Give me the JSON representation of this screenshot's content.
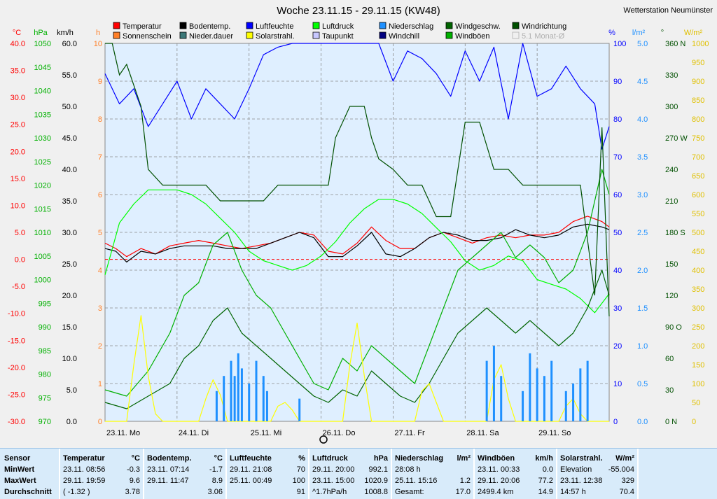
{
  "station": "Wetterstation Neumünster",
  "chart_data": {
    "type": "line",
    "title": "Woche 23.11.15 - 29.11.15 (KW48)",
    "x_labels": [
      "23.11. Mo",
      "24.11. Di",
      "25.11. Mi",
      "26.11. Do",
      "27.11. Fr",
      "28.11. Sa",
      "29.11. So"
    ],
    "x_range": [
      0,
      7
    ],
    "legend": [
      {
        "name": "Temperatur",
        "color": "#ff0000"
      },
      {
        "name": "Bodentemp.",
        "color": "#000000"
      },
      {
        "name": "Luftfeuchte",
        "color": "#0000ff"
      },
      {
        "name": "Luftdruck",
        "color": "#00ff00"
      },
      {
        "name": "Niederschlag",
        "color": "#1e90ff"
      },
      {
        "name": "Windgeschw.",
        "color": "#006400"
      },
      {
        "name": "Windrichtung",
        "color": "#005000"
      },
      {
        "name": "Sonnenschein",
        "color": "#ff7f27"
      },
      {
        "name": "Nieder.dauer",
        "color": "#3c7878"
      },
      {
        "name": "Solarstrahl.",
        "color": "#ffff00"
      },
      {
        "name": "Taupunkt",
        "color": "#c8c8ff"
      },
      {
        "name": "Windchill",
        "color": "#000080"
      },
      {
        "name": "Windböen",
        "color": "#00b000"
      },
      {
        "name": "5.1 Monat-Ø",
        "color": "#c0c0c0"
      }
    ],
    "axes": {
      "temp": {
        "unit": "°C",
        "min": -30,
        "max": 40,
        "ticks": [
          "40.0",
          "35.0",
          "30.0",
          "25.0",
          "20.0",
          "15.0",
          "10.0",
          "5.0",
          "0.0",
          "-5.0",
          "-10.0",
          "-15.0",
          "-20.0",
          "-25.0",
          "-30.0"
        ],
        "color": "#ff0000"
      },
      "press": {
        "unit": "hPa",
        "min": 970,
        "max": 1050,
        "ticks": [
          "1050",
          "1045",
          "1040",
          "1035",
          "1030",
          "1025",
          "1020",
          "1015",
          "1010",
          "1005",
          "1000",
          "995",
          "990",
          "985",
          "980",
          "975",
          "970"
        ],
        "color": "#00b000"
      },
      "wind": {
        "unit": "km/h",
        "min": 0,
        "max": 60,
        "ticks": [
          "60.0",
          "55.0",
          "50.0",
          "45.0",
          "40.0",
          "35.0",
          "30.0",
          "25.0",
          "20.0",
          "15.0",
          "10.0",
          "5.0",
          "0.0"
        ],
        "color": "#000000"
      },
      "sun": {
        "unit": "h",
        "min": 0,
        "max": 10,
        "ticks": [
          "10",
          "9",
          "8",
          "7",
          "6",
          "5",
          "4",
          "3",
          "2",
          "1",
          "0"
        ],
        "color": "#ff7f27"
      },
      "hum": {
        "unit": "%",
        "min": 0,
        "max": 100,
        "ticks": [
          "100",
          "90",
          "80",
          "70",
          "60",
          "50",
          "40",
          "30",
          "20",
          "10",
          "0"
        ],
        "color": "#0000ff"
      },
      "rain": {
        "unit": "l/m²",
        "min": 0,
        "max": 5,
        "ticks": [
          "5.0",
          "4.5",
          "4.0",
          "3.5",
          "3.0",
          "2.5",
          "2.0",
          "1.5",
          "1.0",
          "0.5",
          "0.0"
        ],
        "color": "#1e90ff"
      },
      "dir": {
        "unit": "°",
        "min": 0,
        "max": 360,
        "ticks": [
          "360 N",
          "330",
          "300",
          "270 W",
          "240",
          "210",
          "180 S",
          "150",
          "120",
          "90 O",
          "60",
          "30",
          "0 N"
        ],
        "color": "#005000"
      },
      "solar": {
        "unit": "W/m²",
        "min": 0,
        "max": 1000,
        "ticks": [
          "1000",
          "950",
          "900",
          "850",
          "800",
          "750",
          "700",
          "650",
          "600",
          "550",
          "500",
          "450",
          "400",
          "350",
          "300",
          "250",
          "200",
          "150",
          "100",
          "50",
          "0"
        ],
        "color": "#e0c000"
      }
    },
    "series": [
      {
        "name": "Temperatur",
        "axis": "temp",
        "x": [
          0,
          0.15,
          0.3,
          0.5,
          0.7,
          0.9,
          1.1,
          1.3,
          1.5,
          1.7,
          1.9,
          2.1,
          2.3,
          2.5,
          2.7,
          2.9,
          3.1,
          3.3,
          3.5,
          3.7,
          3.9,
          4.1,
          4.3,
          4.5,
          4.7,
          4.9,
          5.1,
          5.3,
          5.5,
          5.7,
          5.9,
          6.1,
          6.3,
          6.5,
          6.7,
          6.9,
          7.0
        ],
        "y": [
          3,
          2,
          0.5,
          2,
          1,
          2.5,
          3,
          3.5,
          3,
          2.5,
          2,
          2.5,
          3,
          4,
          5,
          4.5,
          1.5,
          1,
          3,
          6,
          3.5,
          2,
          2,
          4,
          5,
          4,
          3,
          4,
          4.5,
          4,
          4.5,
          4.5,
          5,
          7,
          8,
          7,
          6
        ]
      },
      {
        "name": "Bodentemp.",
        "axis": "temp",
        "x": [
          0,
          0.15,
          0.3,
          0.5,
          0.7,
          0.9,
          1.1,
          1.3,
          1.5,
          1.7,
          1.9,
          2.1,
          2.3,
          2.5,
          2.7,
          2.9,
          3.1,
          3.3,
          3.5,
          3.7,
          3.9,
          4.1,
          4.3,
          4.5,
          4.7,
          4.9,
          5.1,
          5.3,
          5.5,
          5.7,
          5.9,
          6.1,
          6.3,
          6.5,
          6.7,
          6.9,
          7.0
        ],
        "y": [
          2,
          1.5,
          -0.5,
          1.5,
          1,
          2,
          2.5,
          2.5,
          2.5,
          2,
          2,
          2,
          3,
          4,
          5,
          4,
          0.5,
          0.5,
          2.5,
          5,
          1,
          0.5,
          2,
          4,
          5,
          4.5,
          3.5,
          3.5,
          4,
          5.5,
          4.5,
          4,
          4.5,
          6,
          6.5,
          6,
          5.5
        ]
      },
      {
        "name": "Luftfeuchte",
        "axis": "hum",
        "x": [
          0,
          0.2,
          0.4,
          0.6,
          0.8,
          1.0,
          1.2,
          1.4,
          1.6,
          1.8,
          2.0,
          2.2,
          2.4,
          2.6,
          2.8,
          3.0,
          3.2,
          3.4,
          3.6,
          3.8,
          4.0,
          4.2,
          4.4,
          4.6,
          4.8,
          5.0,
          5.2,
          5.4,
          5.6,
          5.8,
          6.0,
          6.2,
          6.4,
          6.6,
          6.8,
          6.9,
          7.0
        ],
        "y": [
          92,
          84,
          88,
          78,
          84,
          90,
          80,
          88,
          84,
          80,
          88,
          97,
          99,
          100,
          100,
          100,
          100,
          100,
          100,
          100,
          90,
          98,
          96,
          92,
          86,
          98,
          90,
          99,
          80,
          100,
          86,
          88,
          94,
          88,
          84,
          72,
          78
        ]
      },
      {
        "name": "Luftdruck",
        "axis": "press",
        "x": [
          0,
          0.2,
          0.4,
          0.6,
          0.8,
          1.0,
          1.2,
          1.4,
          1.6,
          1.8,
          2.0,
          2.2,
          2.4,
          2.6,
          2.8,
          3.0,
          3.2,
          3.4,
          3.6,
          3.8,
          4.0,
          4.2,
          4.4,
          4.6,
          4.8,
          5.0,
          5.2,
          5.4,
          5.6,
          5.8,
          6.0,
          6.2,
          6.4,
          6.6,
          6.8,
          7.0
        ],
        "y": [
          1001,
          1012,
          1016,
          1019,
          1019,
          1019,
          1018,
          1016,
          1013,
          1010,
          1006,
          1004,
          1003,
          1002,
          1003,
          1005,
          1008,
          1012,
          1015,
          1017,
          1017,
          1016,
          1014,
          1011,
          1008,
          1004,
          1002,
          1003,
          1005,
          1004,
          1000,
          999,
          998,
          996,
          993,
          997
        ]
      },
      {
        "name": "Windgeschw.",
        "axis": "wind",
        "x": [
          0,
          0.3,
          0.6,
          0.9,
          1.1,
          1.3,
          1.5,
          1.7,
          1.9,
          2.1,
          2.3,
          2.5,
          2.7,
          2.9,
          3.1,
          3.3,
          3.5,
          3.7,
          3.9,
          4.1,
          4.3,
          4.5,
          4.7,
          4.9,
          5.1,
          5.3,
          5.5,
          5.7,
          5.9,
          6.1,
          6.3,
          6.5,
          6.7,
          6.9,
          7.0
        ],
        "y": [
          3,
          2,
          4,
          6,
          10,
          12,
          16,
          18,
          14,
          12,
          10,
          8,
          6,
          4,
          3,
          5,
          4,
          8,
          6,
          4,
          3,
          6,
          10,
          14,
          16,
          18,
          16,
          14,
          16,
          14,
          12,
          14,
          18,
          24,
          20
        ]
      },
      {
        "name": "Windböen",
        "axis": "wind",
        "x": [
          0,
          0.3,
          0.6,
          0.9,
          1.1,
          1.3,
          1.5,
          1.7,
          1.9,
          2.1,
          2.3,
          2.5,
          2.7,
          2.9,
          3.1,
          3.3,
          3.5,
          3.7,
          3.9,
          4.1,
          4.3,
          4.5,
          4.7,
          4.9,
          5.1,
          5.3,
          5.5,
          5.7,
          5.9,
          6.1,
          6.3,
          6.5,
          6.7,
          6.9,
          7.0
        ],
        "y": [
          5,
          4,
          8,
          14,
          20,
          22,
          28,
          30,
          24,
          20,
          18,
          14,
          10,
          6,
          5,
          10,
          8,
          12,
          10,
          8,
          6,
          12,
          18,
          24,
          26,
          28,
          30,
          26,
          28,
          26,
          22,
          24,
          30,
          40,
          36
        ]
      },
      {
        "name": "Windrichtung",
        "axis": "dir",
        "x": [
          0,
          0.1,
          0.2,
          0.3,
          0.5,
          0.6,
          0.8,
          1.0,
          1.2,
          1.4,
          1.6,
          1.8,
          2.0,
          2.2,
          2.4,
          2.6,
          2.8,
          3.0,
          3.1,
          3.2,
          3.4,
          3.6,
          3.7,
          3.8,
          4.0,
          4.2,
          4.4,
          4.6,
          4.8,
          5.0,
          5.2,
          5.4,
          5.6,
          5.8,
          6.0,
          6.2,
          6.4,
          6.6,
          6.8,
          6.9,
          7.0
        ],
        "y": [
          360,
          360,
          330,
          340,
          300,
          240,
          225,
          225,
          225,
          225,
          210,
          210,
          210,
          210,
          225,
          225,
          225,
          225,
          225,
          270,
          300,
          300,
          270,
          250,
          240,
          225,
          225,
          195,
          195,
          285,
          285,
          240,
          240,
          225,
          225,
          225,
          225,
          225,
          120,
          280,
          100
        ]
      },
      {
        "name": "Solarstrahl.",
        "axis": "solar",
        "x": [
          0,
          0.3,
          0.4,
          0.5,
          0.6,
          0.7,
          0.8,
          1.0,
          1.3,
          1.4,
          1.5,
          1.6,
          1.7,
          2.0,
          2.3,
          2.4,
          2.5,
          2.6,
          2.7,
          3.0,
          3.3,
          3.4,
          3.5,
          3.6,
          3.7,
          4.0,
          4.3,
          4.4,
          4.5,
          4.6,
          4.7,
          5.0,
          5.3,
          5.4,
          5.5,
          5.6,
          5.7,
          6.0,
          6.3,
          6.4,
          6.5,
          6.6,
          6.7,
          7.0
        ],
        "y": [
          0,
          0,
          150,
          280,
          120,
          20,
          0,
          0,
          0,
          60,
          110,
          70,
          0,
          0,
          0,
          40,
          50,
          30,
          0,
          0,
          0,
          150,
          260,
          120,
          0,
          0,
          0,
          80,
          100,
          50,
          0,
          0,
          0,
          110,
          150,
          60,
          0,
          0,
          0,
          40,
          60,
          20,
          0,
          0
        ]
      },
      {
        "name": "Niederschlag",
        "axis": "rain",
        "type": "bar",
        "x": [
          1.55,
          1.65,
          1.75,
          1.8,
          1.85,
          1.9,
          2.0,
          2.1,
          2.2,
          2.25,
          2.7,
          5.3,
          5.4,
          5.5,
          5.8,
          5.9,
          6.0,
          6.1,
          6.2,
          6.4,
          6.5,
          6.6,
          6.7
        ],
        "y": [
          0.4,
          0.6,
          0.8,
          0.6,
          0.9,
          0.7,
          0.5,
          0.8,
          0.6,
          0.4,
          0.3,
          0.8,
          1.0,
          0.6,
          0.4,
          0.9,
          0.7,
          0.6,
          0.8,
          0.4,
          0.5,
          0.7,
          0.8
        ]
      }
    ]
  },
  "stats": [
    {
      "name": "Sensor",
      "unit": "",
      "rows": [
        {
          "a": "MinWert",
          "b": ""
        },
        {
          "a": "MaxWert",
          "b": ""
        },
        {
          "a": "Durchschnitt",
          "b": ""
        }
      ]
    },
    {
      "name": "Temperatur",
      "unit": "°C",
      "rows": [
        {
          "a": "23.11.  08:56",
          "b": "-0.3"
        },
        {
          "a": "29.11.  19:59",
          "b": "9.6"
        },
        {
          "a": "( -1.32 )",
          "b": "3.78"
        }
      ]
    },
    {
      "name": "Bodentemp.",
      "unit": "°C",
      "rows": [
        {
          "a": "23.11.  07:14",
          "b": "-1.7"
        },
        {
          "a": "29.11.  11:47",
          "b": "8.9"
        },
        {
          "a": "",
          "b": "3.06"
        }
      ]
    },
    {
      "name": "Luftfeuchte",
      "unit": "%",
      "rows": [
        {
          "a": "29.11.  21:08",
          "b": "70"
        },
        {
          "a": "25.11.  00:49",
          "b": "100"
        },
        {
          "a": "",
          "b": "91"
        }
      ]
    },
    {
      "name": "Luftdruck",
      "unit": "hPa",
      "rows": [
        {
          "a": "29.11.  20:00",
          "b": "992.1"
        },
        {
          "a": "23.11.  15:00",
          "b": "1020.9"
        },
        {
          "a": "^1.7hPa/h",
          "b": "1008.8"
        }
      ]
    },
    {
      "name": "Niederschlag",
      "unit": "l/m²",
      "rows": [
        {
          "a": "28:08 h",
          "b": ""
        },
        {
          "a": "25.11.  15:16",
          "b": "1.2"
        },
        {
          "a": "Gesamt:",
          "b": "17.0"
        }
      ]
    },
    {
      "name": "Windböen",
      "unit": "km/h",
      "rows": [
        {
          "a": "23.11.  00:33",
          "b": "0.0"
        },
        {
          "a": "29.11.  20:06",
          "b": "77.2"
        },
        {
          "a": "2499.4 km",
          "b": "14.9"
        }
      ]
    },
    {
      "name": "Solarstrahl.",
      "unit": "W/m²",
      "rows": [
        {
          "a": "Elevation",
          "b": "-55.004"
        },
        {
          "a": "23.11.  12:38",
          "b": "329"
        },
        {
          "a": "14:57 h",
          "b": "70.4"
        }
      ]
    }
  ]
}
